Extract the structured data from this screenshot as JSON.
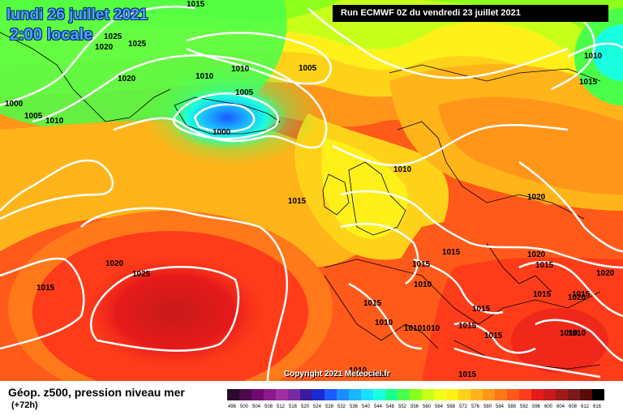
{
  "header": {
    "date_line": "lundi 26 juillet 2021",
    "time_line": "2:00 locale",
    "run_info": "Run ECMWF 0Z du vendredi 23 juillet 2021"
  },
  "footer": {
    "legend_title": "Géop. z500, pression niveau mer",
    "legend_subtitle": "(+72h)",
    "copyright": "Copyright 2021 Meteociel.fr"
  },
  "colorbar": {
    "levels": [
      "496",
      "500",
      "504",
      "508",
      "512",
      "516",
      "520",
      "524",
      "528",
      "532",
      "536",
      "540",
      "544",
      "548",
      "552",
      "556",
      "560",
      "564",
      "568",
      "572",
      "576",
      "580",
      "584",
      "588",
      "592",
      "596",
      "600",
      "604",
      "608",
      "612",
      "616"
    ],
    "colors": [
      "#2a0a2a",
      "#4b0a4b",
      "#6e0a6e",
      "#8c1a8c",
      "#a030a0",
      "#7a2aa0",
      "#3a1aa0",
      "#1a2ad0",
      "#1a5aff",
      "#1a8cff",
      "#1ab4ff",
      "#1ae0ff",
      "#1affe0",
      "#1aff8c",
      "#4aff4a",
      "#8cff1a",
      "#c8ff1a",
      "#f0ff1a",
      "#fff01a",
      "#ffd21a",
      "#ffb41a",
      "#ff961a",
      "#ff781a",
      "#ff5a1a",
      "#ff3c1a",
      "#e61a1a",
      "#c81a1a",
      "#a01a1a",
      "#781a1a",
      "#5a0a0a",
      "#000000"
    ]
  },
  "isobar_labels": [
    {
      "text": "1015"
    },
    {
      "text": "1025"
    },
    {
      "text": "1025"
    },
    {
      "text": "1020"
    },
    {
      "text": "1010"
    },
    {
      "text": "1010"
    },
    {
      "text": "1005"
    },
    {
      "text": "1020"
    },
    {
      "text": "1000"
    },
    {
      "text": "1005"
    },
    {
      "text": "1010"
    },
    {
      "text": "1005"
    },
    {
      "text": "1000"
    },
    {
      "text": "1010"
    },
    {
      "text": "1015"
    },
    {
      "text": "1010"
    },
    {
      "text": "1015"
    },
    {
      "text": "1020"
    },
    {
      "text": "1015"
    },
    {
      "text": "1020"
    },
    {
      "text": "1025"
    },
    {
      "text": "1015"
    },
    {
      "text": "1020"
    },
    {
      "text": "1015"
    },
    {
      "text": "1010"
    },
    {
      "text": "1015"
    },
    {
      "text": "1015"
    },
    {
      "text": "1015"
    },
    {
      "text": "1010"
    },
    {
      "text": "1010"
    },
    {
      "text": "1010"
    },
    {
      "text": "1010"
    },
    {
      "text": "1015"
    },
    {
      "text": "1015"
    },
    {
      "text": "1010"
    },
    {
      "text": "1010"
    },
    {
      "text": "1015"
    },
    {
      "text": "1020"
    },
    {
      "text": "1020"
    },
    {
      "text": "1015"
    },
    {
      "text": "1010"
    },
    {
      "text": "1015"
    }
  ]
}
